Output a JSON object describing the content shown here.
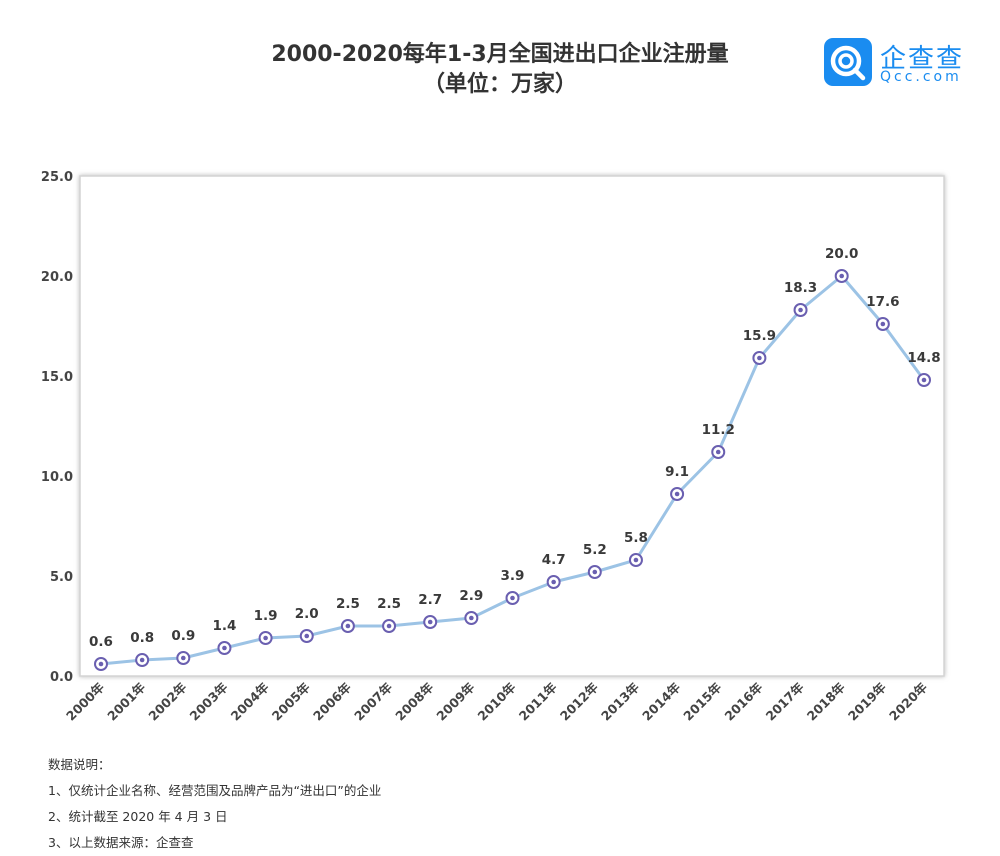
{
  "header": {
    "title": "2000-2020每年1-3月全国进出口企业注册量",
    "subtitle": "（单位：万家）"
  },
  "logo": {
    "name_cn": "企查查",
    "name_en": "Qcc.com",
    "color": "#1a8cf0"
  },
  "chart_data": {
    "type": "line",
    "title": "2000-2020每年1-3月全国进出口企业注册量",
    "subtitle": "（单位：万家）",
    "categories": [
      "2000年",
      "2001年",
      "2002年",
      "2003年",
      "2004年",
      "2005年",
      "2006年",
      "2007年",
      "2008年",
      "2009年",
      "2010年",
      "2011年",
      "2012年",
      "2013年",
      "2014年",
      "2015年",
      "2016年",
      "2017年",
      "2018年",
      "2019年",
      "2020年"
    ],
    "series": [
      {
        "values": [
          0.6,
          0.8,
          0.9,
          1.4,
          1.9,
          2.0,
          2.5,
          2.5,
          2.7,
          2.9,
          3.9,
          4.7,
          5.2,
          5.8,
          9.1,
          11.2,
          15.9,
          18.3,
          20.0,
          17.6,
          14.8
        ]
      }
    ],
    "data_labels": [
      "0.6",
      "0.8",
      "0.9",
      "1.4",
      "1.9",
      "2.0",
      "2.5",
      "2.5",
      "2.7",
      "2.9",
      "3.9",
      "4.7",
      "5.2",
      "5.8",
      "9.1",
      "11.2",
      "15.9",
      "18.3",
      "20.0",
      "17.6",
      "14.8"
    ],
    "ylim": [
      0,
      25
    ],
    "yticks": [
      "0.0",
      "5.0",
      "10.0",
      "15.0",
      "20.0",
      "25.0"
    ],
    "grid": false,
    "legend": "none",
    "line_color": "#9cc3e5",
    "marker_color": "#6a5fb0"
  },
  "notes": {
    "heading": "数据说明：",
    "items": [
      "1、仅统计企业名称、经营范围及品牌产品为“进出口”的企业",
      "2、统计截至 2020 年 4 月 3 日",
      "3、以上数据来源：企查查"
    ]
  }
}
